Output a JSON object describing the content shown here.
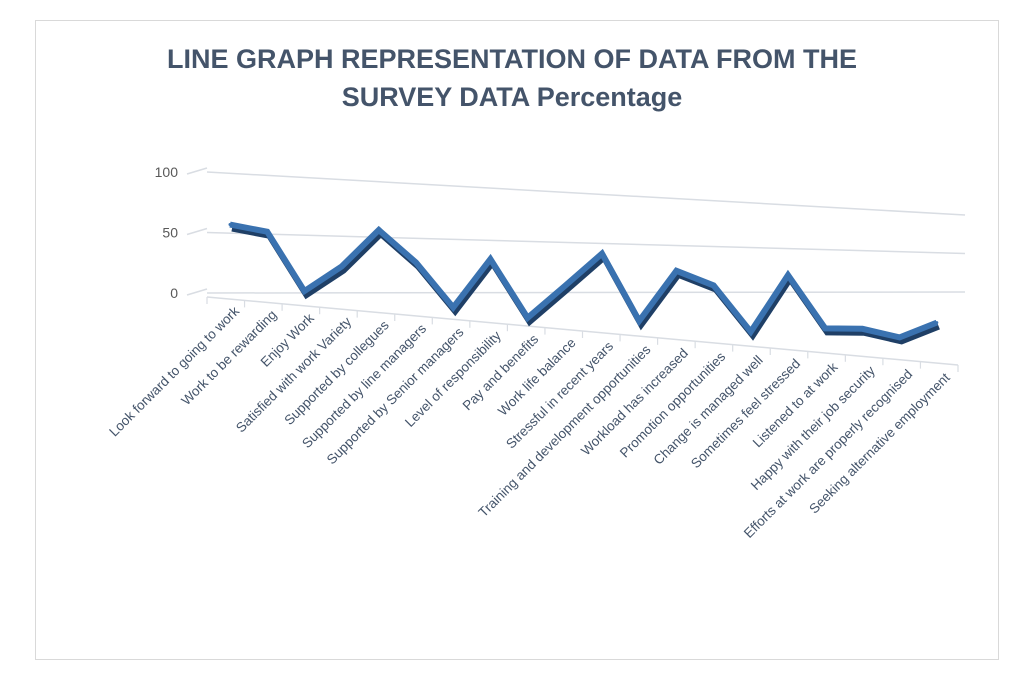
{
  "chart_data": {
    "type": "line",
    "title": "LINE GRAPH REPRESENTATION OF DATA FROM THE SURVEY DATA Percentage",
    "title_lines": [
      "LINE GRAPH REPRESENTATION OF DATA FROM THE",
      "SURVEY DATA Percentage"
    ],
    "xlabel": "",
    "ylabel": "",
    "ylim": [
      0,
      100
    ],
    "yticks": [
      "0",
      "50",
      "100"
    ],
    "grid": true,
    "style": "3d",
    "line_color": "#3a72b0",
    "categories": [
      "Look forward to going to work",
      "Work to be rewarding",
      "Enjoy Work",
      "Satisfied with work Variety",
      "Supported by collegues",
      "Supported by line managers",
      "Supported by Senior managers",
      "Level of responsibility",
      "Pay and benefits",
      "Work life balance",
      "Stressful in recent years",
      "Training and development opportunities",
      "Workload has increased",
      "Promotion opportunities",
      "Change is managed well",
      "Sometimes feel stressed",
      "Listened to at work",
      "Happy with their job security",
      "Efforts at work are properly recognised",
      "Seeking alternative employment"
    ],
    "values": [
      63,
      60,
      10,
      35,
      72,
      45,
      5,
      55,
      0,
      35,
      72,
      5,
      62,
      50,
      2,
      70,
      12,
      15,
      8,
      30
    ]
  }
}
